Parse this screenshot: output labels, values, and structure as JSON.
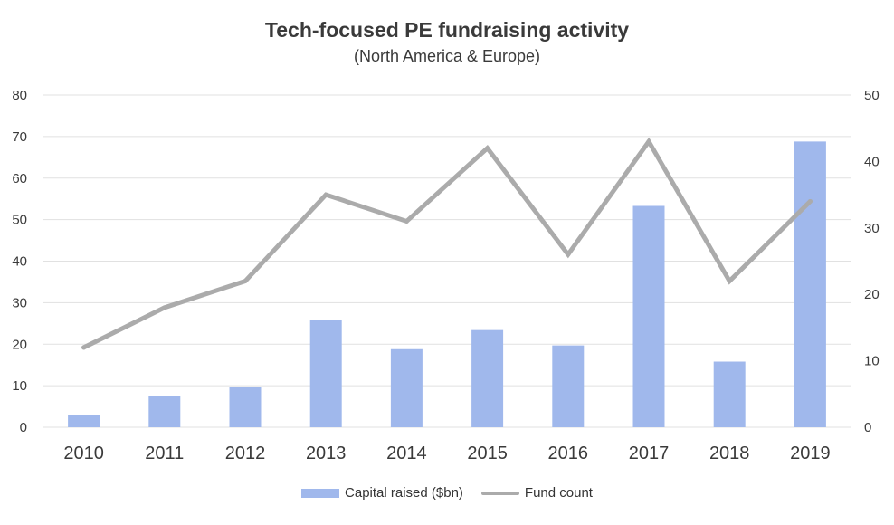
{
  "chart_data": {
    "type": "bar+line",
    "title": "Tech-focused PE fundraising activity",
    "subtitle": "(North America & Europe)",
    "categories": [
      "2010",
      "2011",
      "2012",
      "2013",
      "2014",
      "2015",
      "2016",
      "2017",
      "2018",
      "2019"
    ],
    "series": [
      {
        "name": "Capital raised ($bn)",
        "type": "bar",
        "axis": "left",
        "color": "#a0b8ec",
        "values": [
          3,
          7.5,
          9.7,
          25.8,
          18.8,
          23.4,
          19.7,
          53.3,
          15.8,
          68.8
        ]
      },
      {
        "name": "Fund count",
        "type": "line",
        "axis": "right",
        "color": "#ababab",
        "values": [
          12,
          18,
          22,
          35,
          31,
          42,
          26,
          43,
          22,
          34
        ]
      }
    ],
    "y_left": {
      "min": 0,
      "max": 80,
      "ticks": [
        "0",
        "10",
        "20",
        "30",
        "40",
        "50",
        "60",
        "70",
        "80"
      ]
    },
    "y_right": {
      "min": 0,
      "max": 50,
      "ticks": [
        "0",
        "10",
        "20",
        "30",
        "40",
        "50"
      ]
    },
    "grid": true,
    "legend_position": "bottom"
  },
  "colors": {
    "bar": "#a0b8ec",
    "line": "#ababab",
    "grid": "#e1e1e1",
    "axis_text": "#3a3a3a"
  }
}
